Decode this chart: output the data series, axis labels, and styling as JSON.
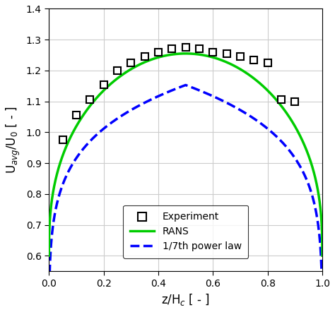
{
  "title": "",
  "xlabel": "z/H$_c$ [ - ]",
  "ylabel": "U$_{avg}$/U$_0$ [ - ]",
  "xlim": [
    0,
    1
  ],
  "ylim": [
    0.55,
    1.4
  ],
  "yticks": [
    0.6,
    0.7,
    0.8,
    0.9,
    1.0,
    1.1,
    1.2,
    1.3,
    1.4
  ],
  "xticks": [
    0.0,
    0.2,
    0.4,
    0.6,
    0.8,
    1.0
  ],
  "exp_x": [
    0.05,
    0.1,
    0.15,
    0.2,
    0.25,
    0.3,
    0.35,
    0.4,
    0.45,
    0.5,
    0.55,
    0.6,
    0.65,
    0.7,
    0.75,
    0.8,
    0.85,
    0.9
  ],
  "exp_y": [
    0.975,
    1.055,
    1.105,
    1.155,
    1.2,
    1.225,
    1.245,
    1.26,
    1.27,
    1.275,
    1.27,
    1.26,
    1.255,
    1.245,
    1.235,
    1.225,
    1.105,
    1.1
  ],
  "rans_a": 0.6,
  "rans_b": 0.655,
  "rans_c": 0.38,
  "power_C": 1.273,
  "power_n": 0.1429,
  "rans_color": "#00cc00",
  "power_law_color": "#0000ff",
  "exp_marker": "s",
  "exp_color": "black",
  "exp_facecolor": "white",
  "background_color": "#ffffff",
  "grid_color": "#cccccc"
}
